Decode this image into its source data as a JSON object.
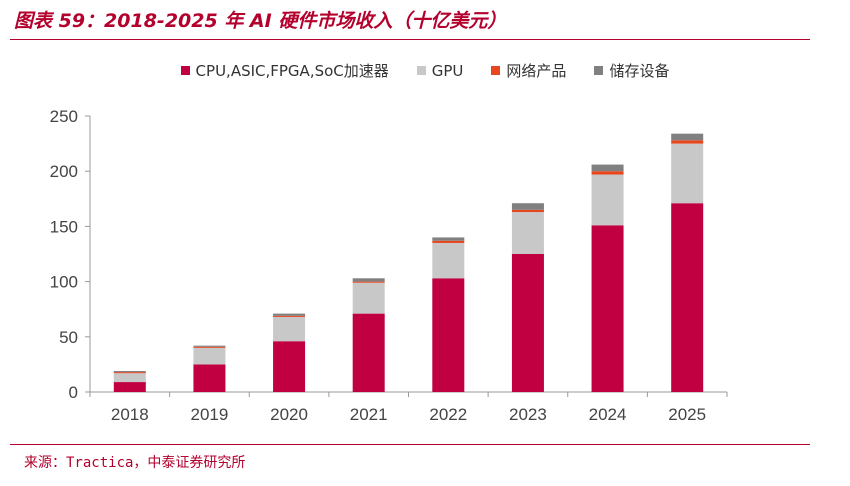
{
  "header": {
    "title": "图表 59：2018-2025 年 AI 硬件市场收入（十亿美元）"
  },
  "footer": {
    "source": "来源：Tractica，中泰证券研究所"
  },
  "chart_data": {
    "type": "bar",
    "stacked": true,
    "title": "图表 59：2018-2025 年 AI 硬件市场收入（十亿美元）",
    "xlabel": "",
    "ylabel": "",
    "ylim": [
      0,
      250
    ],
    "yticks": [
      "0",
      "50",
      "100",
      "150",
      "200",
      "250"
    ],
    "categories": [
      "2018",
      "2019",
      "2020",
      "2021",
      "2022",
      "2023",
      "2024",
      "2025"
    ],
    "series": [
      {
        "name": "CPU,ASIC,FPGA,SoC加速器",
        "color": "#c00040",
        "values": [
          9,
          25,
          46,
          71,
          103,
          125,
          151,
          171
        ]
      },
      {
        "name": "GPU",
        "color": "#c8c8c8",
        "values": [
          8,
          15,
          22,
          28,
          32,
          38,
          46,
          54
        ]
      },
      {
        "name": "网络产品",
        "color": "#e8461e",
        "values": [
          1,
          1,
          1,
          1,
          2,
          2,
          3,
          3
        ]
      },
      {
        "name": "储存设备",
        "color": "#808080",
        "values": [
          1,
          1,
          2,
          3,
          3,
          6,
          6,
          6
        ]
      }
    ],
    "legend_position": "top-center",
    "grid": false
  }
}
